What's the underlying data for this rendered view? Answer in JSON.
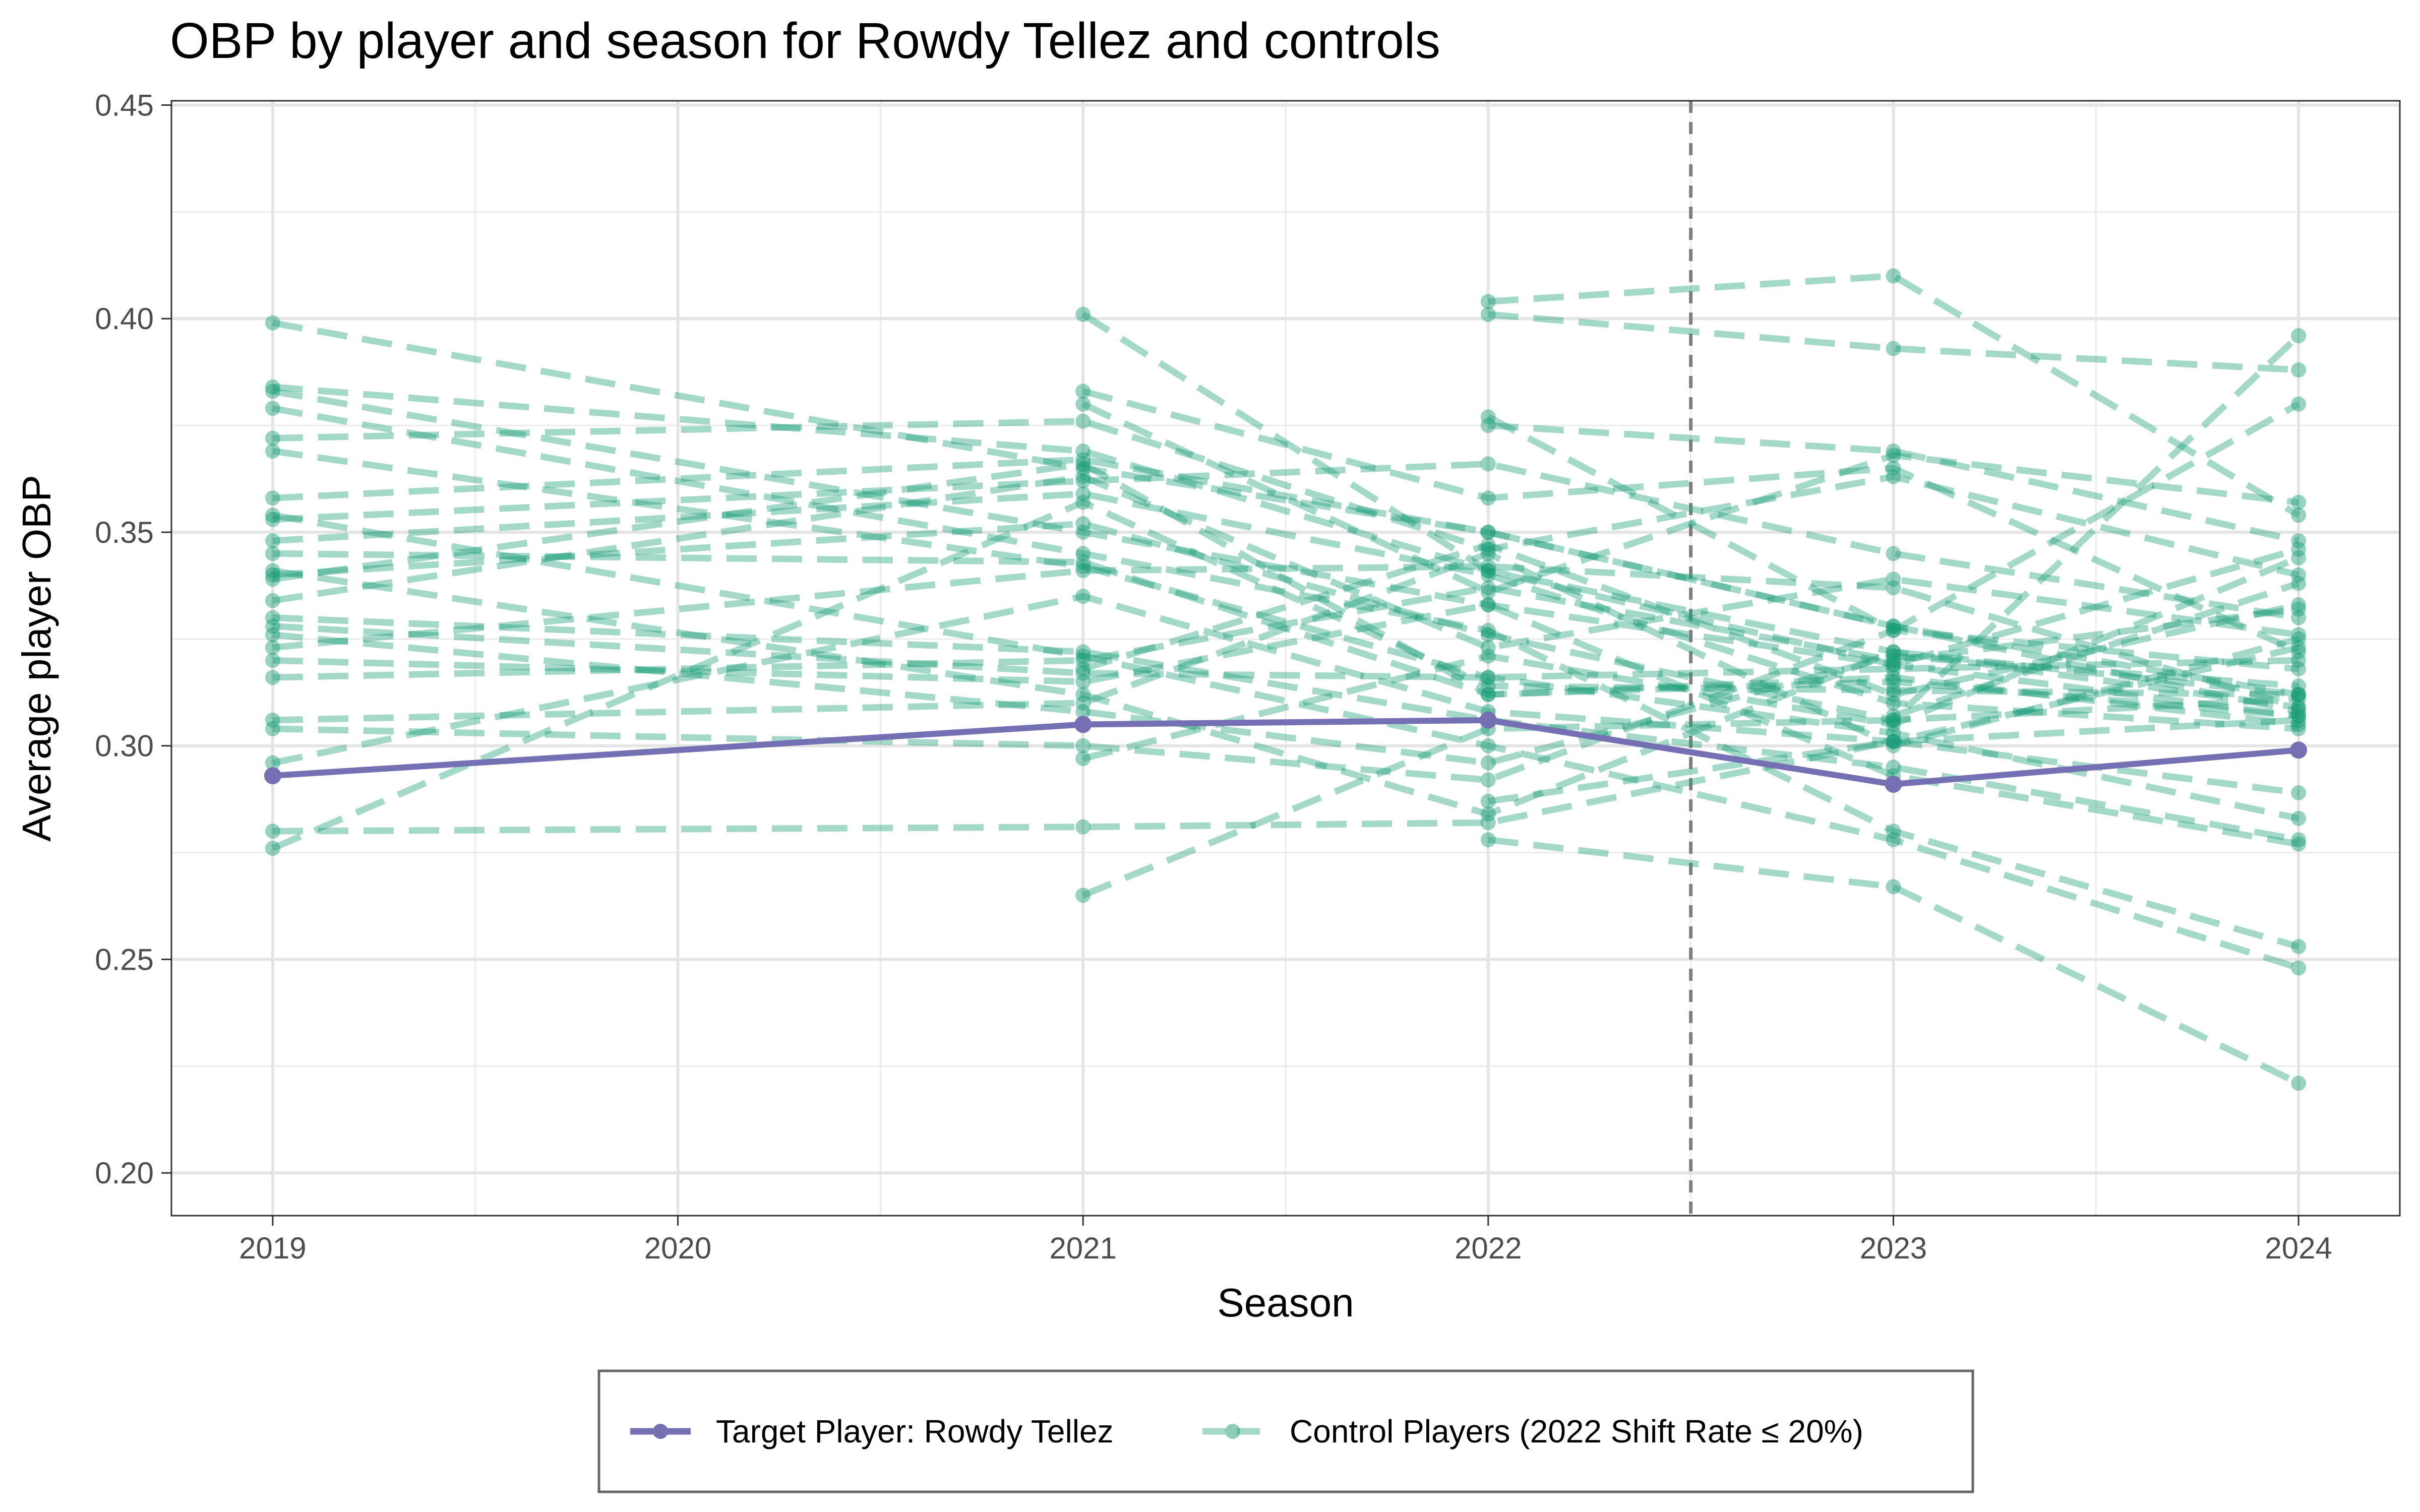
{
  "chart_data": {
    "type": "line",
    "title": "OBP by player and season for Rowdy Tellez and controls",
    "xlabel": "Season",
    "ylabel": "Average player OBP",
    "xlim": [
      2018.75,
      2024.25
    ],
    "ylim": [
      0.19,
      0.451
    ],
    "x_ticks": [
      2019,
      2020,
      2021,
      2022,
      2023,
      2024
    ],
    "y_ticks": [
      0.2,
      0.25,
      0.3,
      0.35,
      0.4,
      0.45
    ],
    "y_tick_labels": [
      "0.20",
      "0.25",
      "0.30",
      "0.35",
      "0.40",
      "0.45"
    ],
    "grid": true,
    "legend_position": "bottom",
    "reference_line": {
      "x": 2022.5,
      "style": "dashed",
      "color": "#7f7f7f"
    },
    "colors": {
      "target": "#7570b3",
      "control": "#1b9e77"
    },
    "target": {
      "name": "Target Player: Rowdy Tellez",
      "x": [
        2019,
        2021,
        2022,
        2023,
        2024
      ],
      "values": [
        0.293,
        0.305,
        0.306,
        0.291,
        0.299
      ]
    },
    "controls_name": "Control Players (2022 Shift Rate ≤ 20%)",
    "controls": [
      {
        "x": [
          2019,
          2021,
          2022,
          2023,
          2024
        ],
        "values": [
          0.399,
          0.365,
          0.35,
          0.328,
          0.312
        ]
      },
      {
        "x": [
          2019,
          2021,
          2022,
          2023,
          2024
        ],
        "values": [
          0.384,
          0.369,
          0.341,
          0.322,
          0.309
        ]
      },
      {
        "x": [
          2019,
          2021,
          2022,
          2023,
          2024
        ],
        "values": [
          0.383,
          0.35,
          0.333,
          0.319,
          0.307
        ]
      },
      {
        "x": [
          2019,
          2021,
          2022,
          2023,
          2024
        ],
        "values": [
          0.379,
          0.345,
          0.327,
          0.28,
          0.253
        ]
      },
      {
        "x": [
          2019,
          2021,
          2022,
          2023,
          2024
        ],
        "values": [
          0.372,
          0.376,
          0.346,
          0.363,
          0.34
        ]
      },
      {
        "x": [
          2019,
          2021,
          2022,
          2023,
          2024
        ],
        "values": [
          0.369,
          0.342,
          0.316,
          0.303,
          0.283
        ]
      },
      {
        "x": [
          2019,
          2021,
          2022,
          2023,
          2024
        ],
        "values": [
          0.358,
          0.367,
          0.35,
          0.328,
          0.308
        ]
      },
      {
        "x": [
          2019,
          2021,
          2022,
          2023,
          2024
        ],
        "values": [
          0.354,
          0.321,
          0.3,
          0.278,
          0.248
        ]
      },
      {
        "x": [
          2019,
          2021,
          2022,
          2023,
          2024
        ],
        "values": [
          0.353,
          0.362,
          0.366,
          0.345,
          0.33
        ]
      },
      {
        "x": [
          2019,
          2021,
          2022,
          2023,
          2024
        ],
        "values": [
          0.348,
          0.359,
          0.34,
          0.31,
          0.304
        ]
      },
      {
        "x": [
          2019,
          2021,
          2022,
          2023,
          2024
        ],
        "values": [
          0.345,
          0.343,
          0.312,
          0.316,
          0.305
        ]
      },
      {
        "x": [
          2019,
          2021,
          2022,
          2023,
          2024
        ],
        "values": [
          0.341,
          0.312,
          0.284,
          0.322,
          0.312
        ]
      },
      {
        "x": [
          2019,
          2021,
          2022,
          2023,
          2024
        ],
        "values": [
          0.34,
          0.352,
          0.326,
          0.306,
          0.311
        ]
      },
      {
        "x": [
          2019,
          2021,
          2022,
          2023,
          2024
        ],
        "values": [
          0.339,
          0.366,
          0.312,
          0.315,
          0.307
        ]
      },
      {
        "x": [
          2019,
          2021,
          2022,
          2023,
          2024
        ],
        "values": [
          0.334,
          0.363,
          0.323,
          0.339,
          0.326
        ]
      },
      {
        "x": [
          2019,
          2021,
          2022,
          2023,
          2024
        ],
        "values": [
          0.33,
          0.322,
          0.306,
          0.295,
          0.278
        ]
      },
      {
        "x": [
          2019,
          2021,
          2022,
          2023,
          2024
        ],
        "values": [
          0.328,
          0.317,
          0.316,
          0.318,
          0.32
        ]
      },
      {
        "x": [
          2019,
          2021,
          2022,
          2023,
          2024
        ],
        "values": [
          0.326,
          0.308,
          0.296,
          0.321,
          0.314
        ]
      },
      {
        "x": [
          2019,
          2021,
          2022,
          2023,
          2024
        ],
        "values": [
          0.323,
          0.341,
          0.342,
          0.337,
          0.309
        ]
      },
      {
        "x": [
          2019,
          2021,
          2022,
          2023,
          2024
        ],
        "values": [
          0.32,
          0.315,
          0.333,
          0.293,
          0.277
        ]
      },
      {
        "x": [
          2019,
          2021,
          2022,
          2023,
          2024
        ],
        "values": [
          0.316,
          0.32,
          0.337,
          0.32,
          0.332
        ]
      },
      {
        "x": [
          2019,
          2021,
          2022,
          2023,
          2024
        ],
        "values": [
          0.306,
          0.31,
          0.345,
          0.3,
          0.325
        ]
      },
      {
        "x": [
          2019,
          2021,
          2022,
          2023,
          2024
        ],
        "values": [
          0.304,
          0.3,
          0.292,
          0.327,
          0.318
        ]
      },
      {
        "x": [
          2019,
          2021,
          2022,
          2023,
          2024
        ],
        "values": [
          0.296,
          0.335,
          0.308,
          0.301,
          0.323
        ]
      },
      {
        "x": [
          2019,
          2021,
          2022,
          2023,
          2024
        ],
        "values": [
          0.28,
          0.281,
          0.282,
          0.301,
          0.306
        ]
      },
      {
        "x": [
          2019,
          2021,
          2022,
          2023,
          2024
        ],
        "values": [
          0.276,
          0.357,
          0.314,
          0.313,
          0.312
        ]
      },
      {
        "x": [
          2021,
          2022,
          2023,
          2024
        ],
        "values": [
          0.401,
          0.341,
          0.319,
          0.346
        ]
      },
      {
        "x": [
          2021,
          2022,
          2023,
          2024
        ],
        "values": [
          0.383,
          0.358,
          0.365,
          0.322
        ]
      },
      {
        "x": [
          2021,
          2022,
          2023,
          2024
        ],
        "values": [
          0.38,
          0.336,
          0.368,
          0.357
        ]
      },
      {
        "x": [
          2021,
          2022,
          2023,
          2024
        ],
        "values": [
          0.318,
          0.347,
          0.312,
          0.333
        ]
      },
      {
        "x": [
          2021,
          2022,
          2023,
          2024
        ],
        "values": [
          0.297,
          0.321,
          0.305,
          0.344
        ]
      },
      {
        "x": [
          2021,
          2022,
          2023,
          2024
        ],
        "values": [
          0.265,
          0.304,
          0.306,
          0.396
        ]
      },
      {
        "x": [
          2022,
          2023,
          2024
        ],
        "values": [
          0.404,
          0.41,
          0.354
        ]
      },
      {
        "x": [
          2022,
          2023,
          2024
        ],
        "values": [
          0.401,
          0.393,
          0.388
        ]
      },
      {
        "x": [
          2022,
          2023,
          2024
        ],
        "values": [
          0.377,
          0.327,
          0.38
        ]
      },
      {
        "x": [
          2022,
          2023,
          2024
        ],
        "values": [
          0.375,
          0.369,
          0.348
        ]
      },
      {
        "x": [
          2022,
          2023,
          2024
        ],
        "values": [
          0.278,
          0.267,
          0.221
        ]
      },
      {
        "x": [
          2022,
          2023,
          2024
        ],
        "values": [
          0.287,
          0.301,
          0.289
        ]
      },
      {
        "x": [
          2023,
          2024
        ],
        "values": [
          0.307,
          0.338
        ]
      }
    ]
  }
}
